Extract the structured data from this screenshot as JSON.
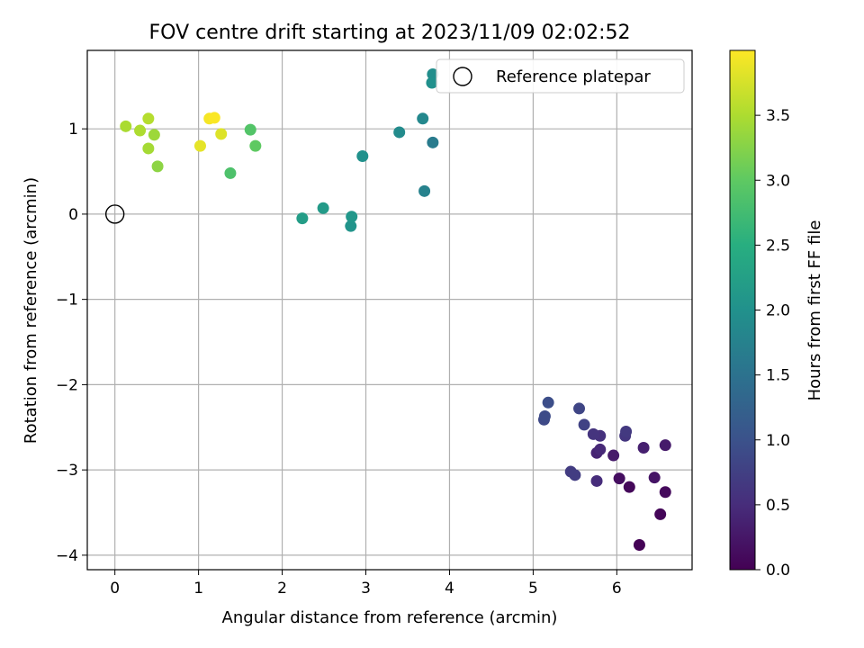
{
  "chart_data": {
    "type": "scatter",
    "title": "FOV centre drift starting at 2023/11/09 02:02:52",
    "xlabel": "Angular distance from reference (arcmin)",
    "ylabel": "Rotation from reference (arcmin)",
    "xlim": [
      -0.33,
      6.9
    ],
    "ylim": [
      -4.17,
      1.92
    ],
    "xticks": [
      0,
      1,
      2,
      3,
      4,
      5,
      6
    ],
    "yticks": [
      -4,
      -3,
      -2,
      -1,
      0,
      1
    ],
    "grid": true,
    "legend": {
      "position": "upper right",
      "entries": [
        "Reference platepar"
      ]
    },
    "reference_point": {
      "x": 0,
      "y": 0
    },
    "colorbar": {
      "label": "Hours from first FF file",
      "colormap": "viridis",
      "range": [
        0.0,
        4.0
      ],
      "ticks": [
        "0.0",
        "0.5",
        "1.0",
        "1.5",
        "2.0",
        "2.5",
        "3.0",
        "3.5"
      ]
    },
    "points": [
      {
        "x": 6.27,
        "y": -3.88,
        "c": 0.02
      },
      {
        "x": 6.52,
        "y": -3.52,
        "c": 0.05
      },
      {
        "x": 6.58,
        "y": -3.26,
        "c": 0.1
      },
      {
        "x": 6.15,
        "y": -3.2,
        "c": 0.08
      },
      {
        "x": 6.03,
        "y": -3.1,
        "c": 0.15
      },
      {
        "x": 6.45,
        "y": -3.09,
        "c": 0.22
      },
      {
        "x": 5.96,
        "y": -2.83,
        "c": 0.28
      },
      {
        "x": 6.32,
        "y": -2.74,
        "c": 0.35
      },
      {
        "x": 6.58,
        "y": -2.71,
        "c": 0.3
      },
      {
        "x": 5.76,
        "y": -2.8,
        "c": 0.4
      },
      {
        "x": 5.8,
        "y": -2.76,
        "c": 0.45
      },
      {
        "x": 5.76,
        "y": -3.13,
        "c": 0.5
      },
      {
        "x": 5.8,
        "y": -2.6,
        "c": 0.55
      },
      {
        "x": 5.72,
        "y": -2.58,
        "c": 0.6
      },
      {
        "x": 6.1,
        "y": -2.6,
        "c": 0.62
      },
      {
        "x": 6.11,
        "y": -2.55,
        "c": 0.66
      },
      {
        "x": 5.45,
        "y": -3.02,
        "c": 0.7
      },
      {
        "x": 5.5,
        "y": -3.06,
        "c": 0.72
      },
      {
        "x": 5.61,
        "y": -2.47,
        "c": 0.78
      },
      {
        "x": 5.55,
        "y": -2.28,
        "c": 0.82
      },
      {
        "x": 5.13,
        "y": -2.41,
        "c": 0.88
      },
      {
        "x": 5.14,
        "y": -2.37,
        "c": 0.9
      },
      {
        "x": 5.18,
        "y": -2.21,
        "c": 0.95
      },
      {
        "x": 3.8,
        "y": 0.84,
        "c": 1.65
      },
      {
        "x": 3.7,
        "y": 0.27,
        "c": 1.75
      },
      {
        "x": 3.68,
        "y": 1.12,
        "c": 1.85
      },
      {
        "x": 3.4,
        "y": 0.96,
        "c": 1.9
      },
      {
        "x": 3.8,
        "y": 1.64,
        "c": 1.95
      },
      {
        "x": 3.79,
        "y": 1.54,
        "c": 1.98
      },
      {
        "x": 2.96,
        "y": 0.68,
        "c": 2.0
      },
      {
        "x": 2.82,
        "y": -0.14,
        "c": 2.05
      },
      {
        "x": 2.83,
        "y": -0.03,
        "c": 2.1
      },
      {
        "x": 2.49,
        "y": 0.07,
        "c": 2.15
      },
      {
        "x": 2.24,
        "y": -0.05,
        "c": 2.2
      },
      {
        "x": 1.38,
        "y": 0.48,
        "c": 2.85
      },
      {
        "x": 1.62,
        "y": 0.99,
        "c": 2.9
      },
      {
        "x": 1.68,
        "y": 0.8,
        "c": 3.0
      },
      {
        "x": 0.51,
        "y": 0.56,
        "c": 3.3
      },
      {
        "x": 0.47,
        "y": 0.93,
        "c": 3.4
      },
      {
        "x": 0.4,
        "y": 0.77,
        "c": 3.45
      },
      {
        "x": 0.3,
        "y": 0.98,
        "c": 3.5
      },
      {
        "x": 0.13,
        "y": 1.03,
        "c": 3.48
      },
      {
        "x": 0.4,
        "y": 1.12,
        "c": 3.55
      },
      {
        "x": 1.27,
        "y": 0.94,
        "c": 3.8
      },
      {
        "x": 1.02,
        "y": 0.8,
        "c": 3.85
      },
      {
        "x": 1.13,
        "y": 1.12,
        "c": 3.95
      },
      {
        "x": 1.19,
        "y": 1.13,
        "c": 3.98
      }
    ]
  }
}
